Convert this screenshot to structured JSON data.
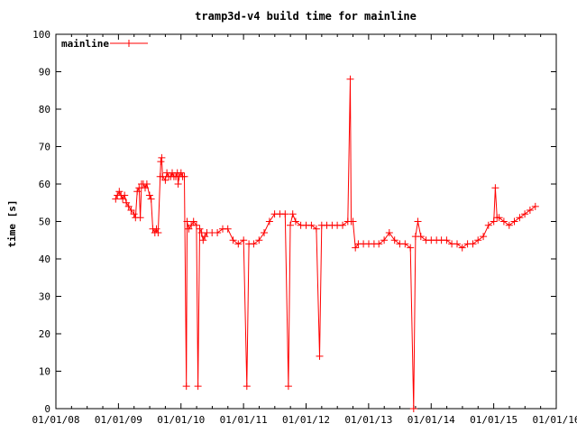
{
  "chart_data": {
    "type": "line",
    "title": "tramp3d-v4 build time for mainline",
    "xlabel": "",
    "ylabel": "time [s]",
    "ylim": [
      0,
      100
    ],
    "xlim": [
      "2008-01-01",
      "2016-01-01"
    ],
    "yticks": [
      "0",
      "10",
      "20",
      "30",
      "40",
      "50",
      "60",
      "70",
      "80",
      "90",
      "100"
    ],
    "xticks": [
      "01/01/08",
      "01/01/09",
      "01/01/10",
      "01/01/11",
      "01/01/12",
      "01/01/13",
      "01/01/14",
      "01/01/15",
      "01/01/16"
    ],
    "grid": false,
    "legend": "top-left",
    "color": "#ff0000",
    "series": [
      {
        "name": "mainline",
        "marker": "plus",
        "points": [
          [
            "2008-12-15",
            56
          ],
          [
            "2008-12-25",
            57
          ],
          [
            "2009-01-05",
            58
          ],
          [
            "2009-01-15",
            57
          ],
          [
            "2009-01-25",
            56
          ],
          [
            "2009-02-05",
            57
          ],
          [
            "2009-02-15",
            55
          ],
          [
            "2009-03-01",
            54
          ],
          [
            "2009-03-15",
            53
          ],
          [
            "2009-04-01",
            52
          ],
          [
            "2009-04-10",
            51
          ],
          [
            "2009-04-20",
            58
          ],
          [
            "2009-05-01",
            59
          ],
          [
            "2009-05-08",
            51
          ],
          [
            "2009-05-15",
            60
          ],
          [
            "2009-05-25",
            60
          ],
          [
            "2009-06-05",
            59
          ],
          [
            "2009-06-15",
            60
          ],
          [
            "2009-07-01",
            57
          ],
          [
            "2009-07-10",
            56
          ],
          [
            "2009-07-20",
            48
          ],
          [
            "2009-08-01",
            47
          ],
          [
            "2009-08-10",
            48
          ],
          [
            "2009-08-20",
            47
          ],
          [
            "2009-09-01",
            62
          ],
          [
            "2009-09-05",
            66
          ],
          [
            "2009-09-10",
            67
          ],
          [
            "2009-09-15",
            62
          ],
          [
            "2009-10-01",
            61
          ],
          [
            "2009-10-10",
            63
          ],
          [
            "2009-10-20",
            62
          ],
          [
            "2009-11-01",
            62
          ],
          [
            "2009-11-10",
            63
          ],
          [
            "2009-11-20",
            62
          ],
          [
            "2009-12-01",
            62
          ],
          [
            "2009-12-10",
            63
          ],
          [
            "2009-12-15",
            60
          ],
          [
            "2009-12-20",
            62
          ],
          [
            "2010-01-01",
            63
          ],
          [
            "2010-01-10",
            62
          ],
          [
            "2010-01-20",
            62
          ],
          [
            "2010-02-01",
            6
          ],
          [
            "2010-02-05",
            50
          ],
          [
            "2010-02-15",
            48
          ],
          [
            "2010-03-01",
            49
          ],
          [
            "2010-03-15",
            50
          ],
          [
            "2010-04-01",
            49
          ],
          [
            "2010-04-10",
            6
          ],
          [
            "2010-04-20",
            48
          ],
          [
            "2010-05-01",
            47
          ],
          [
            "2010-05-10",
            45
          ],
          [
            "2010-05-20",
            46
          ],
          [
            "2010-06-01",
            47
          ],
          [
            "2010-07-01",
            47
          ],
          [
            "2010-08-01",
            47
          ],
          [
            "2010-09-01",
            48
          ],
          [
            "2010-10-01",
            48
          ],
          [
            "2010-11-01",
            45
          ],
          [
            "2010-12-01",
            44
          ],
          [
            "2011-01-01",
            45
          ],
          [
            "2011-01-20",
            6
          ],
          [
            "2011-02-01",
            44
          ],
          [
            "2011-03-01",
            44
          ],
          [
            "2011-04-01",
            45
          ],
          [
            "2011-05-01",
            47
          ],
          [
            "2011-06-01",
            50
          ],
          [
            "2011-07-01",
            52
          ],
          [
            "2011-08-01",
            52
          ],
          [
            "2011-09-01",
            52
          ],
          [
            "2011-09-20",
            6
          ],
          [
            "2011-10-01",
            49
          ],
          [
            "2011-10-15",
            52
          ],
          [
            "2011-11-01",
            50
          ],
          [
            "2011-12-01",
            49
          ],
          [
            "2012-01-01",
            49
          ],
          [
            "2012-02-01",
            49
          ],
          [
            "2012-03-01",
            48
          ],
          [
            "2012-03-20",
            14
          ],
          [
            "2012-04-01",
            49
          ],
          [
            "2012-05-01",
            49
          ],
          [
            "2012-06-01",
            49
          ],
          [
            "2012-07-01",
            49
          ],
          [
            "2012-08-01",
            49
          ],
          [
            "2012-09-01",
            50
          ],
          [
            "2012-09-15",
            88
          ],
          [
            "2012-09-20",
            50
          ],
          [
            "2012-10-01",
            50
          ],
          [
            "2012-10-15",
            43
          ],
          [
            "2012-11-01",
            44
          ],
          [
            "2012-12-01",
            44
          ],
          [
            "2013-01-01",
            44
          ],
          [
            "2013-02-01",
            44
          ],
          [
            "2013-03-01",
            44
          ],
          [
            "2013-04-01",
            45
          ],
          [
            "2013-05-01",
            47
          ],
          [
            "2013-06-01",
            45
          ],
          [
            "2013-07-01",
            44
          ],
          [
            "2013-08-01",
            44
          ],
          [
            "2013-09-01",
            43
          ],
          [
            "2013-09-20",
            0
          ],
          [
            "2013-10-01",
            46
          ],
          [
            "2013-10-15",
            50
          ],
          [
            "2013-11-01",
            46
          ],
          [
            "2013-12-01",
            45
          ],
          [
            "2014-01-01",
            45
          ],
          [
            "2014-02-01",
            45
          ],
          [
            "2014-03-01",
            45
          ],
          [
            "2014-04-01",
            45
          ],
          [
            "2014-05-01",
            44
          ],
          [
            "2014-06-01",
            44
          ],
          [
            "2014-07-01",
            43
          ],
          [
            "2014-08-01",
            44
          ],
          [
            "2014-09-01",
            44
          ],
          [
            "2014-10-01",
            45
          ],
          [
            "2014-11-01",
            46
          ],
          [
            "2014-12-01",
            49
          ],
          [
            "2015-01-01",
            50
          ],
          [
            "2015-01-10",
            59
          ],
          [
            "2015-01-20",
            51
          ],
          [
            "2015-02-01",
            51
          ],
          [
            "2015-03-01",
            50
          ],
          [
            "2015-04-01",
            49
          ],
          [
            "2015-05-01",
            50
          ],
          [
            "2015-06-01",
            51
          ],
          [
            "2015-07-01",
            52
          ],
          [
            "2015-08-01",
            53
          ],
          [
            "2015-09-01",
            54
          ]
        ]
      }
    ]
  }
}
